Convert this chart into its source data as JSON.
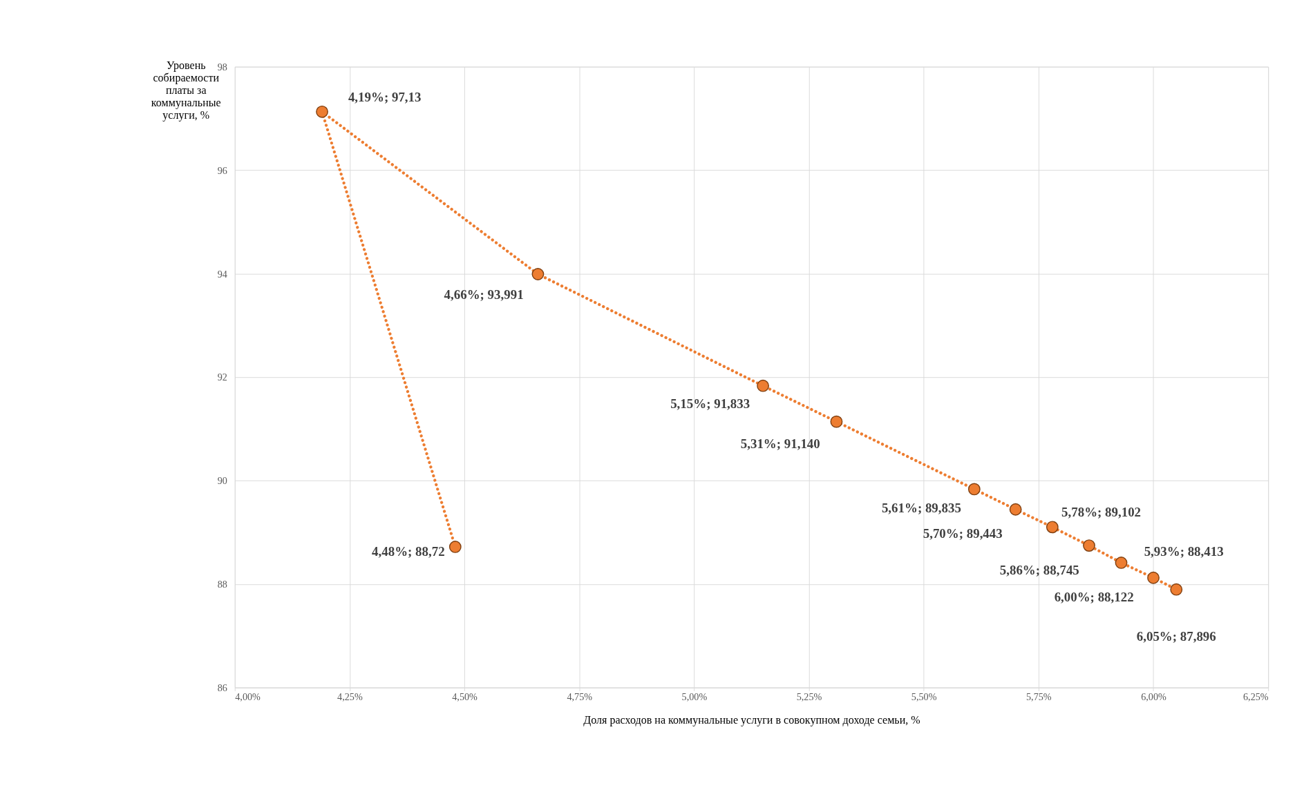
{
  "chart_data": {
    "type": "line",
    "xlabel": "Доля расходов на коммунальные услуги в совокупном доходе семьи, %",
    "ylabel": "Уровень собираемости платы за коммунальные услуги, %",
    "series": [
      {
        "color": "#ed7d31",
        "x": [
          4.48,
          4.19,
          4.66,
          5.15,
          5.31,
          5.61,
          5.7,
          5.78,
          5.86,
          5.93,
          6.0,
          6.05
        ],
        "values": [
          88.72,
          97.13,
          93.991,
          91.833,
          91.14,
          89.835,
          89.443,
          89.102,
          88.745,
          88.413,
          88.122,
          87.896
        ],
        "value_labels": [
          "4,48%; 88,72",
          "4,19%; 97,13",
          "4,66%; 93,991",
          "5,15%; 91,833",
          "5,31%; 91,140",
          "5,61%; 89,835",
          "5,70%; 89,443",
          "5,78%; 89,102",
          "5,86%; 88,745",
          "5,93%; 88,413",
          "6,00%; 88,122",
          "6,05%; 87,896"
        ]
      }
    ],
    "xlim": [
      4.0,
      6.25
    ],
    "xticks": [
      {
        "value": 4.0,
        "label": "4,00%"
      },
      {
        "value": 4.25,
        "label": "4,25%"
      },
      {
        "value": 4.5,
        "label": "4,50%"
      },
      {
        "value": 4.75,
        "label": "4,75%"
      },
      {
        "value": 5.0,
        "label": "5,00%"
      },
      {
        "value": 5.25,
        "label": "5,25%"
      },
      {
        "value": 5.5,
        "label": "5,50%"
      },
      {
        "value": 5.75,
        "label": "5,75%"
      },
      {
        "value": 6.0,
        "label": "6,00%"
      },
      {
        "value": 6.25,
        "label": "6,25%"
      }
    ],
    "ylim": [
      86,
      98
    ],
    "yticks": [
      86,
      88,
      90,
      92,
      94,
      96,
      98
    ],
    "grid": true,
    "marker": "circle",
    "line_style": "dotted"
  }
}
